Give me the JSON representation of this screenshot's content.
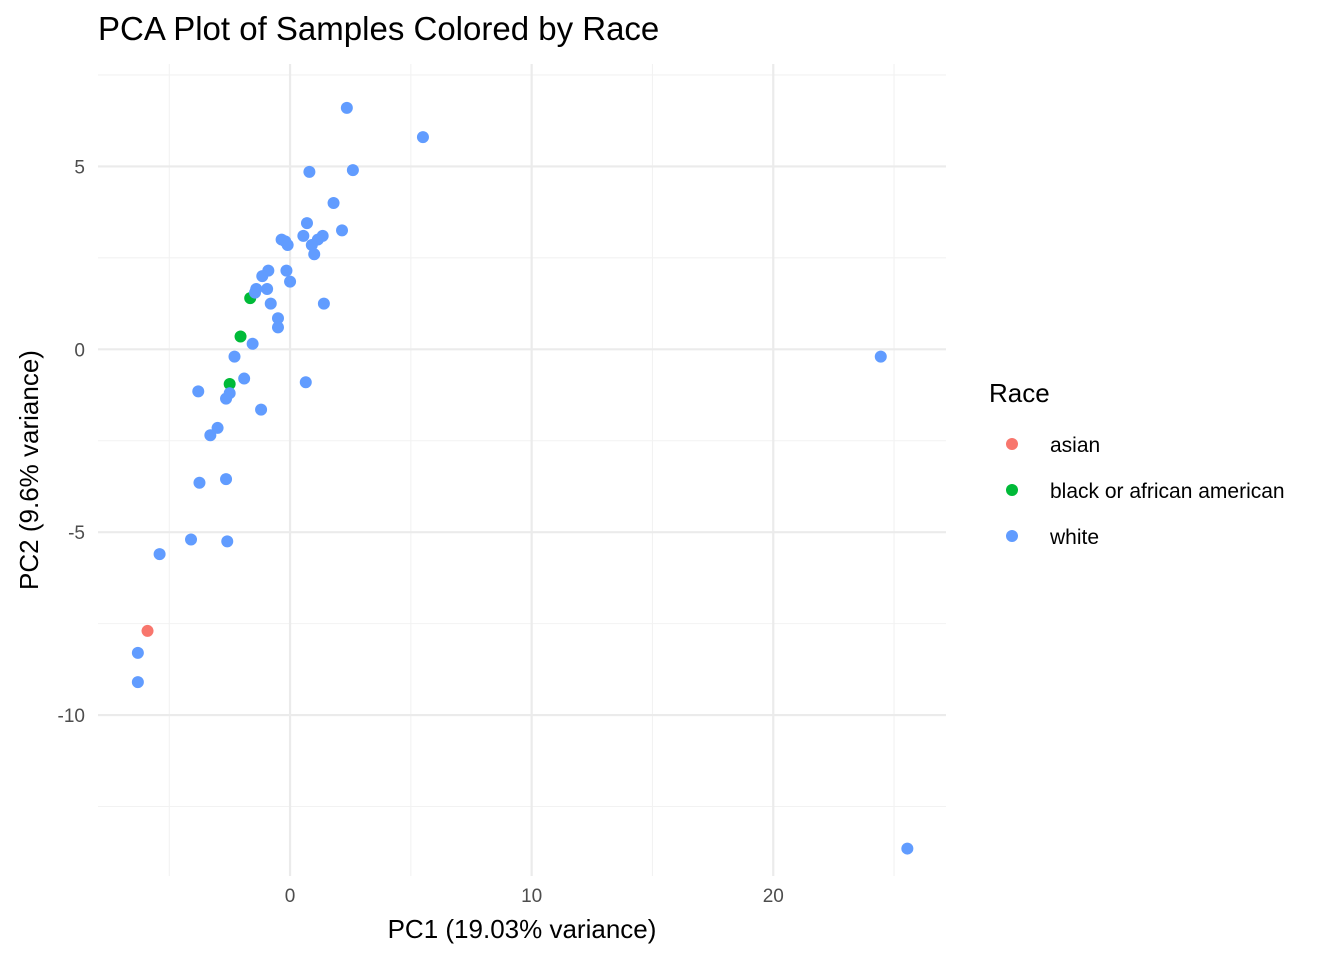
{
  "chart_data": {
    "type": "scatter",
    "title": "PCA Plot of Samples Colored by Race",
    "xlabel": "PC1 (19.03% variance)",
    "ylabel": "PC2 (9.6% variance)",
    "xlim": [
      -7.95,
      27.15
    ],
    "ylim": [
      -14.4,
      7.8
    ],
    "x_ticks": [
      0,
      10,
      20
    ],
    "x_tick_labels": [
      "0",
      "10",
      "20"
    ],
    "x_minor_ticks": [
      -5,
      5,
      15,
      25
    ],
    "y_ticks": [
      -10,
      -5,
      0,
      5
    ],
    "y_tick_labels": [
      "-10",
      "-5",
      "0",
      "5"
    ],
    "y_minor_ticks": [
      -12.5,
      -7.5,
      -2.5,
      2.5,
      7.5
    ],
    "grid": true,
    "legend": {
      "title": "Race",
      "position": "right"
    },
    "series": [
      {
        "name": "asian",
        "color": "#F8766D",
        "points": [
          [
            -5.9,
            -7.7
          ]
        ]
      },
      {
        "name": "black or african american",
        "color": "#00BA38",
        "points": [
          [
            -1.65,
            1.4
          ],
          [
            -2.05,
            0.35
          ],
          [
            -2.5,
            -0.95
          ]
        ]
      },
      {
        "name": "white",
        "color": "#619CFF",
        "points": [
          [
            2.35,
            6.6
          ],
          [
            5.5,
            5.8
          ],
          [
            0.8,
            4.85
          ],
          [
            2.6,
            4.9
          ],
          [
            1.8,
            4.0
          ],
          [
            0.7,
            3.45
          ],
          [
            2.15,
            3.25
          ],
          [
            0.55,
            3.1
          ],
          [
            1.35,
            3.1
          ],
          [
            1.15,
            3.0
          ],
          [
            -0.35,
            3.0
          ],
          [
            -0.2,
            2.95
          ],
          [
            0.9,
            2.85
          ],
          [
            -0.1,
            2.85
          ],
          [
            1.0,
            2.6
          ],
          [
            -0.9,
            2.15
          ],
          [
            -0.15,
            2.15
          ],
          [
            -1.15,
            2.0
          ],
          [
            0.0,
            1.85
          ],
          [
            -1.4,
            1.65
          ],
          [
            -0.95,
            1.65
          ],
          [
            -1.45,
            1.55
          ],
          [
            -0.8,
            1.25
          ],
          [
            1.4,
            1.25
          ],
          [
            -0.5,
            0.85
          ],
          [
            -0.5,
            0.6
          ],
          [
            -1.55,
            0.15
          ],
          [
            -2.3,
            -0.2
          ],
          [
            -1.9,
            -0.8
          ],
          [
            0.65,
            -0.9
          ],
          [
            -3.8,
            -1.15
          ],
          [
            -2.5,
            -1.2
          ],
          [
            -2.65,
            -1.35
          ],
          [
            -1.2,
            -1.65
          ],
          [
            -3.0,
            -2.15
          ],
          [
            -3.3,
            -2.35
          ],
          [
            -2.65,
            -3.55
          ],
          [
            -3.75,
            -3.65
          ],
          [
            -4.1,
            -5.2
          ],
          [
            -2.6,
            -5.25
          ],
          [
            -5.4,
            -5.6
          ],
          [
            -6.3,
            -8.3
          ],
          [
            -6.3,
            -9.1
          ],
          [
            24.45,
            -0.2
          ],
          [
            25.55,
            -13.65
          ]
        ]
      }
    ]
  }
}
